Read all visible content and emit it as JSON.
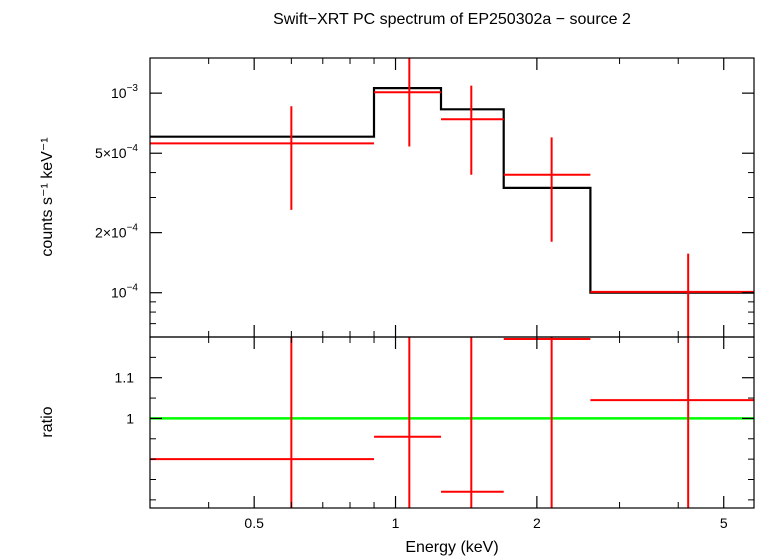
{
  "chart_data": [
    {
      "type": "line",
      "panel": "spectrum",
      "title": "Swift−XRT PC spectrum of EP250302a − source 2",
      "ylabel": "counts s⁻¹ keV⁻¹",
      "xscale": "log",
      "yscale": "log",
      "xlim": [
        0.3,
        5.8
      ],
      "ylim": [
        6e-05,
        0.0015
      ],
      "yticks": [
        {
          "value": 0.001,
          "label_base": "10",
          "label_exp": "−3"
        },
        {
          "value": 0.0005,
          "label_base": "5×10",
          "label_exp": "−4"
        },
        {
          "value": 0.0002,
          "label_base": "2×10",
          "label_exp": "−4"
        },
        {
          "value": 0.0001,
          "label_base": "10",
          "label_exp": "−4"
        }
      ],
      "series": [
        {
          "color": "#ff0000",
          "style": "errorbars",
          "points": [
            {
              "x": 0.6,
              "xlo": 0.3,
              "xhi": 0.9,
              "y": 0.00056,
              "ylo": 0.00026,
              "yhi": 0.00086
            },
            {
              "x": 1.07,
              "xlo": 0.9,
              "xhi": 1.25,
              "y": 0.00101,
              "ylo": 0.00054,
              "yhi": 0.0015
            },
            {
              "x": 1.45,
              "xlo": 1.25,
              "xhi": 1.7,
              "y": 0.00074,
              "ylo": 0.00039,
              "yhi": 0.00109
            },
            {
              "x": 2.15,
              "xlo": 1.7,
              "xhi": 2.6,
              "y": 0.00039,
              "ylo": 0.00018,
              "yhi": 0.0006
            },
            {
              "x": 4.2,
              "xlo": 2.6,
              "xhi": 5.8,
              "y": 0.000101,
              "ylo": 4.5e-05,
              "yhi": 0.000157
            }
          ]
        },
        {
          "color": "#000000",
          "style": "step",
          "bins": [
            {
              "xlo": 0.3,
              "xhi": 0.9,
              "y": 0.000605
            },
            {
              "xlo": 0.9,
              "xhi": 1.25,
              "y": 0.00106
            },
            {
              "xlo": 1.25,
              "xhi": 1.7,
              "y": 0.00083
            },
            {
              "xlo": 1.7,
              "xhi": 2.6,
              "y": 0.000335
            },
            {
              "xlo": 2.6,
              "xhi": 5.8,
              "y": 0.0001
            }
          ]
        }
      ]
    },
    {
      "type": "line",
      "panel": "ratio",
      "xlabel": "Energy (keV)",
      "ylabel": "ratio",
      "xscale": "log",
      "xlim": [
        0.3,
        5.8
      ],
      "ylim": [
        0.78,
        1.2
      ],
      "xticks": [
        {
          "value": 0.5,
          "label": "0.5"
        },
        {
          "value": 1,
          "label": "1"
        },
        {
          "value": 2,
          "label": "2"
        },
        {
          "value": 5,
          "label": "5"
        }
      ],
      "yticks": [
        {
          "value": 1,
          "label": "1"
        },
        {
          "value": 1.1,
          "label": "1.1"
        }
      ],
      "series": [
        {
          "color": "#ff0000",
          "style": "errorbars",
          "points": [
            {
              "x": 0.6,
              "xlo": 0.3,
              "xhi": 0.9,
              "y": 0.9
            },
            {
              "x": 1.07,
              "xlo": 0.9,
              "xhi": 1.25,
              "y": 0.955
            },
            {
              "x": 1.45,
              "xlo": 1.25,
              "xhi": 1.7,
              "y": 0.82
            },
            {
              "x": 2.15,
              "xlo": 1.7,
              "xhi": 2.6,
              "y": 1.195
            },
            {
              "x": 4.2,
              "xlo": 2.6,
              "xhi": 5.8,
              "y": 1.045
            }
          ]
        },
        {
          "color": "#00ff00",
          "style": "reference-line",
          "y": 1
        }
      ]
    }
  ]
}
